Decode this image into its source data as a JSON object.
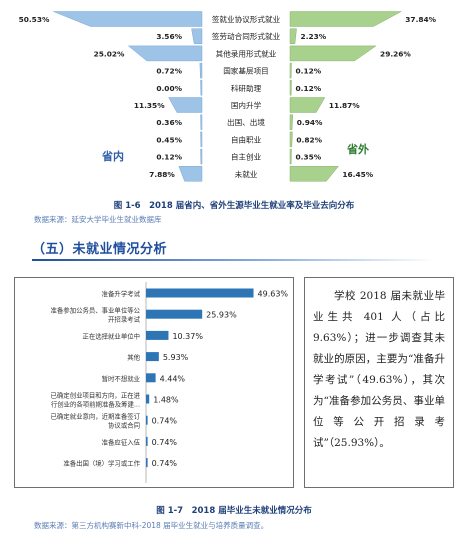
{
  "fig16": {
    "caption": "图 1-6　2018 届省内、省外生源毕业生就业率及毕业去向分布",
    "source": "数据来源：延安大学毕业生就业数据库",
    "left_label": "省内",
    "right_label": "省外",
    "left_color": "#9dc3e6",
    "right_color": "#a9d18e",
    "label_color": "#2e7d32",
    "label_color_left": "#2f5fa8"
  },
  "chart_data": [
    {
      "type": "bar",
      "categories": [
        "签就业协议形式就业",
        "签劳动合同形式就业",
        "其他录用形式就业",
        "国家基层项目",
        "科研助理",
        "国内升学",
        "出国、出境",
        "自由职业",
        "自主创业",
        "未就业"
      ],
      "series": [
        {
          "name": "省内",
          "values": [
            50.53,
            3.56,
            25.02,
            0.72,
            0.0,
            11.35,
            0.36,
            0.45,
            0.12,
            7.88
          ]
        },
        {
          "name": "省外",
          "values": [
            37.84,
            2.23,
            29.26,
            0.12,
            0.12,
            11.87,
            0.94,
            0.82,
            0.35,
            16.45
          ]
        }
      ],
      "value_labels_left": [
        "50.53%",
        "3.56%",
        "25.02%",
        "0.72%",
        "0.00%",
        "11.35%",
        "0.36%",
        "0.45%",
        "0.12%",
        "7.88%"
      ],
      "value_labels_right": [
        "37.84%",
        "2.23%",
        "29.26%",
        "0.12%",
        "0.12%",
        "11.87%",
        "0.94%",
        "0.82%",
        "0.35%",
        "16.45%"
      ],
      "xlim": [
        0,
        51
      ]
    },
    {
      "type": "bar",
      "categories": [
        "准备升学考试",
        "准备参加公务员、事业单位等公开招录考试",
        "正在选择就业单位中",
        "其他",
        "暂时不想就业",
        "已确定创业项目和方向，正在进行创业的各项前期准备及筹建...",
        "已确定就业意向，近期准备签订协议或合同",
        "准备应征入伍",
        "准备出国（境）学习或工作"
      ],
      "category_lines": [
        [
          "准备升学考试"
        ],
        [
          "准备参加公务员、事业单位等公",
          "开招录考试"
        ],
        [
          "正在选择就业单位中"
        ],
        [
          "其他"
        ],
        [
          "暂时不想就业"
        ],
        [
          "已确定创业项目和方向，正在进",
          "行创业的各项前期准备及筹建..."
        ],
        [
          "已确定就业意向，近期准备签订",
          "协议或合同"
        ],
        [
          "准备应征入伍"
        ],
        [
          "准备出国（境）学习或工作"
        ]
      ],
      "values": [
        49.63,
        25.93,
        10.37,
        5.93,
        4.44,
        1.48,
        0.74,
        0.74,
        0.74
      ],
      "value_labels": [
        "49.63%",
        "25.93%",
        "10.37%",
        "5.93%",
        "4.44%",
        "1.48%",
        "0.74%",
        "0.74%",
        "0.74%"
      ],
      "bar_color": "#2e75b6",
      "xlim": [
        0,
        60
      ]
    }
  ],
  "fig17": {
    "caption": "图 1-7　2018 届毕业生未就业情况分布",
    "source": "数据来源：第三方机构赛新中科-2018 届毕业生就业与培养质量调查。"
  },
  "section": {
    "title": "（五）未就业情况分析"
  },
  "textbox": {
    "paragraph": "学校 2018 届未就业毕业生共 401 人（占比 9.63%）；进一步调查其未就业的原因，主要为“准备升学考试”（49.63%），其次为“准备参加公务员、事业单位等公开招录考试”（25.93%）。"
  }
}
